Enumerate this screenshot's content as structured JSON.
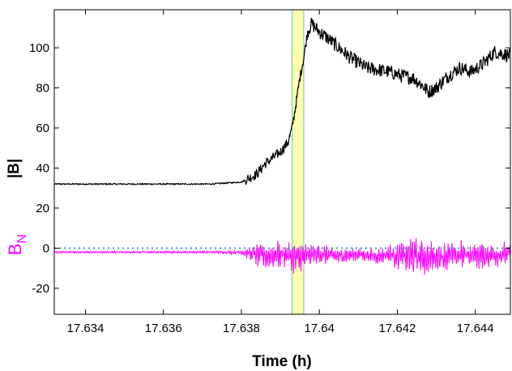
{
  "chart_data": {
    "type": "line",
    "xlabel": "Time (h)",
    "xlim": [
      17.6332,
      17.6449
    ],
    "ylim": [
      -33,
      119
    ],
    "x_ticks": [
      17.634,
      17.636,
      17.638,
      17.64,
      17.642,
      17.644
    ],
    "x_tick_labels": [
      "17.634",
      "17.636",
      "17.638",
      "17.64",
      "17.642",
      "17.644"
    ],
    "y_ticks": [
      -20,
      0,
      20,
      40,
      60,
      80,
      100
    ],
    "y_tick_labels": [
      "-20",
      "0",
      "20",
      "40",
      "60",
      "80",
      "100"
    ],
    "ylabel_upper": "|B|",
    "ylabel_lower_base": "B",
    "ylabel_lower_sub": "N",
    "highlight": {
      "x_start": 17.6393,
      "x_end": 17.6396,
      "color": "#ffffb0",
      "edge_color": "#66cc99"
    },
    "reference_line": {
      "y": 0,
      "color": "#4a8fc7",
      "style": "dotted"
    },
    "colors": {
      "B_magnitude": "#000000",
      "B_N": "#ff00ff"
    },
    "series": [
      {
        "name": "|B|",
        "color": "#000000",
        "x": [
          17.6332,
          17.6345,
          17.636,
          17.6372,
          17.638,
          17.6384,
          17.6386,
          17.6388,
          17.639,
          17.6392,
          17.6393,
          17.6394,
          17.6395,
          17.6396,
          17.6397,
          17.6398,
          17.64,
          17.6402,
          17.6405,
          17.6408,
          17.6412,
          17.6415,
          17.6418,
          17.6421,
          17.6424,
          17.6426,
          17.6428,
          17.643,
          17.6433,
          17.6436,
          17.6439,
          17.6442,
          17.6445,
          17.6449
        ],
        "values": [
          32,
          32,
          32,
          32,
          33,
          37,
          42,
          45,
          48,
          53,
          60,
          72,
          85,
          95,
          108,
          112,
          108,
          105,
          100,
          95,
          90,
          89,
          88,
          86,
          85,
          82,
          78,
          80,
          86,
          90,
          88,
          92,
          98,
          96
        ]
      },
      {
        "name": "B_N",
        "color": "#ff00ff",
        "x": [
          17.6332,
          17.635,
          17.637,
          17.638,
          17.6383,
          17.6387,
          17.6391,
          17.6394,
          17.6397,
          17.64,
          17.6405,
          17.641,
          17.6415,
          17.6418,
          17.6421,
          17.6424,
          17.6427,
          17.643,
          17.6434,
          17.6438,
          17.6442,
          17.6446,
          17.6449
        ],
        "values": [
          -2,
          -2,
          -2,
          -2,
          -3,
          -4,
          -3,
          -5,
          -4,
          -3,
          -4,
          -3,
          -4,
          -3,
          -4,
          -4,
          -5,
          -4,
          -4,
          -3,
          -4,
          -3,
          -3
        ],
        "amplitude": [
          0.5,
          0.5,
          0.6,
          1.0,
          5,
          7,
          7,
          8,
          6,
          5,
          4,
          3,
          4,
          6,
          8,
          10,
          8,
          7,
          8,
          6,
          7,
          6,
          6
        ]
      }
    ]
  }
}
